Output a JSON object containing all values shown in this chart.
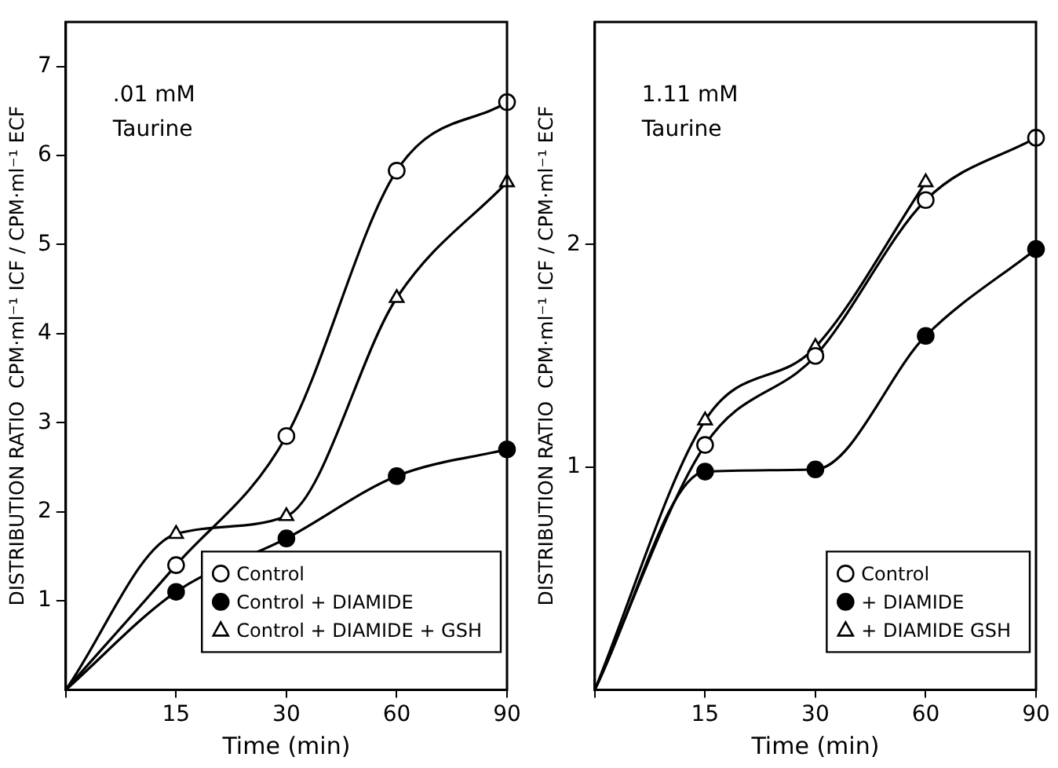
{
  "chart_data": [
    {
      "type": "line",
      "annotations": [
        ".01 mM",
        "Taurine"
      ],
      "xlabel": "Time (min)",
      "ylabel": "DISTRIBUTION RATIO  CPM·ml⁻¹ ICF / CPM·ml⁻¹ ECF",
      "categories": [
        null,
        "15",
        "30",
        "60",
        "90"
      ],
      "ylim": [
        0,
        7.5
      ],
      "yticks": [
        1,
        2,
        3,
        4,
        5,
        6,
        7
      ],
      "grid": false,
      "legend": "bottom right",
      "series": [
        {
          "name": "Control",
          "color": "#000000",
          "marker": "circle",
          "values": [
            0,
            1.4,
            2.85,
            5.83,
            6.6
          ]
        },
        {
          "name": "Control + DIAMIDE",
          "color": "#000000",
          "colors": [
            "#000000",
            "#000000",
            "#000000",
            "#000000",
            "#000000"
          ],
          "marker": "circle",
          "values": [
            0,
            1.1,
            1.7,
            2.4,
            2.7
          ]
        },
        {
          "name": "Control + DIAMIDE + GSH",
          "color": "#000000",
          "marker": "triangle",
          "values": [
            0,
            1.75,
            1.95,
            4.4,
            5.7
          ]
        }
      ]
    },
    {
      "type": "line",
      "annotations": [
        "1.11 mM",
        "Taurine"
      ],
      "xlabel": "Time (min)",
      "ylabel": "DISTRIBUTION RATIO  CPM·ml⁻¹ ICF / CPM·ml⁻¹ ECF",
      "categories": [
        null,
        "15",
        "30",
        "60",
        "90"
      ],
      "ylim": [
        0,
        3
      ],
      "yticks": [
        1,
        2
      ],
      "grid": false,
      "legend": "bottom right",
      "series": [
        {
          "name": "Control",
          "color": "#000000",
          "marker": "circle",
          "values": [
            0,
            1.1,
            1.5,
            2.2,
            2.48
          ]
        },
        {
          "name": "+ DIAMIDE",
          "color": "#000000",
          "colors": [
            "#000000",
            "#000000",
            "#000000",
            "#000000",
            "#000000"
          ],
          "marker": "circle",
          "values": [
            0,
            0.98,
            0.99,
            1.59,
            1.98
          ]
        },
        {
          "name": "+ DIAMIDE GSH",
          "color": "#000000",
          "marker": "triangle",
          "values": [
            0,
            1.21,
            1.54,
            2.28,
            null
          ]
        }
      ]
    }
  ]
}
